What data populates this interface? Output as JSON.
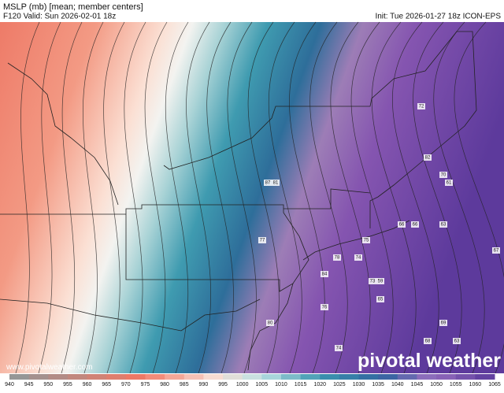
{
  "header": {
    "title": "MSLP (mb) [mean; member centers]",
    "valid": "F120 Valid: Sun 2026-02-01 18z",
    "init": "Init: Tue 2026-01-27 18z ICON-EPS"
  },
  "member_centers": [
    72,
    82,
    70,
    61,
    87,
    81,
    66,
    66,
    63,
    67,
    77,
    75,
    78,
    74,
    84,
    73,
    59,
    65,
    76,
    80,
    69,
    68,
    63,
    74
  ],
  "colorbar": {
    "ticks": [
      940,
      945,
      950,
      955,
      960,
      965,
      970,
      975,
      980,
      985,
      990,
      995,
      1000,
      1005,
      1010,
      1015,
      1020,
      1025,
      1030,
      1035,
      1040,
      1045,
      1050,
      1055,
      1060,
      1065
    ]
  },
  "footer": {
    "url": "www.pivotalweather.com",
    "logo": "pivotal weather"
  }
}
